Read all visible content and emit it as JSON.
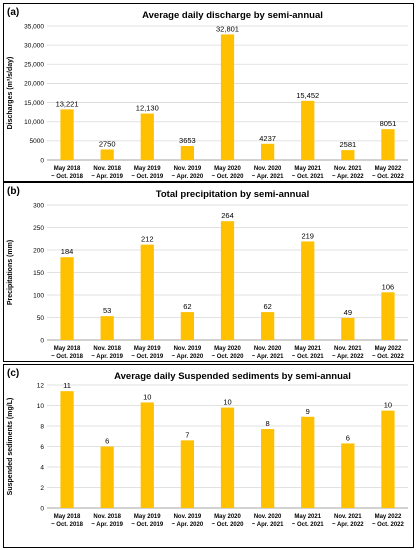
{
  "chart_data": [
    {
      "type": "bar",
      "panel": "(a)",
      "title": "Average daily discharge by semi-annual",
      "ylabel": "Discharges (m³/s/day)",
      "xlabel": "",
      "ylim": [
        0,
        35000
      ],
      "yticks": [
        0,
        5000,
        10000,
        15000,
        20000,
        25000,
        30000,
        35000
      ],
      "ytick_labels": [
        "0",
        "5000",
        "10,000",
        "15,000",
        "20,000",
        "25,000",
        "30,000",
        "35,000"
      ],
      "grid": true,
      "bar_color": "#FFC000",
      "categories": [
        [
          "May 2018",
          "~ Oct. 2018"
        ],
        [
          "Nov. 2018",
          "~ Apr. 2019"
        ],
        [
          "May 2019",
          "~ Oct. 2019"
        ],
        [
          "Nov. 2019",
          "~ Apr. 2020"
        ],
        [
          "May 2020",
          "~ Oct. 2020"
        ],
        [
          "Nov. 2020",
          "~ Apr. 2021"
        ],
        [
          "May 2021",
          "~ Oct. 2021"
        ],
        [
          "Nov. 2021",
          "~ Apr. 2022"
        ],
        [
          "May 2022",
          "~ Oct. 2022"
        ]
      ],
      "values": [
        13221,
        2750,
        12130,
        3653,
        32801,
        4237,
        15452,
        2581,
        8051
      ],
      "value_labels": [
        "13,221",
        "2750",
        "12,130",
        "3653",
        "32,801",
        "4237",
        "15,452",
        "2581",
        "8051"
      ]
    },
    {
      "type": "bar",
      "panel": "(b)",
      "title": "Total precipitation by semi-annual",
      "ylabel": "Precipitations (mm)",
      "xlabel": "",
      "ylim": [
        0,
        300
      ],
      "yticks": [
        0,
        50,
        100,
        150,
        200,
        250,
        300
      ],
      "ytick_labels": [
        "0",
        "50",
        "100",
        "150",
        "200",
        "250",
        "300"
      ],
      "grid": true,
      "bar_color": "#FFC000",
      "categories": [
        [
          "May 2018",
          "~ Oct. 2018"
        ],
        [
          "Nov. 2018",
          "~ Apr. 2019"
        ],
        [
          "May 2019",
          "~ Oct. 2019"
        ],
        [
          "Nov. 2019",
          "~ Apr. 2020"
        ],
        [
          "May 2020",
          "~ Oct. 2020"
        ],
        [
          "Nov. 2020",
          "~ Apr. 2021"
        ],
        [
          "May 2021",
          "~ Oct. 2021"
        ],
        [
          "Nov. 2021",
          "~ Apr. 2022"
        ],
        [
          "May 2022",
          "~ Oct. 2022"
        ]
      ],
      "values": [
        184,
        53,
        212,
        62,
        264,
        62,
        219,
        49,
        106
      ],
      "value_labels": [
        "184",
        "53",
        "212",
        "62",
        "264",
        "62",
        "219",
        "49",
        "106"
      ]
    },
    {
      "type": "bar",
      "panel": "(c)",
      "title": "Average daily Suspended sediments by semi-annual",
      "ylabel": "Suspended sediments (mg/L)",
      "xlabel": "",
      "ylim": [
        0,
        12
      ],
      "yticks": [
        0,
        2,
        4,
        6,
        8,
        10,
        12
      ],
      "ytick_labels": [
        "0",
        "2",
        "4",
        "6",
        "8",
        "10",
        "12"
      ],
      "grid": true,
      "bar_color": "#FFC000",
      "categories": [
        [
          "May 2018",
          "~ Oct. 2018"
        ],
        [
          "Nov. 2018",
          "~ Apr. 2019"
        ],
        [
          "May 2019",
          "~ Oct. 2019"
        ],
        [
          "Nov. 2019",
          "~ Apr. 2020"
        ],
        [
          "May 2020",
          "~ Oct. 2020"
        ],
        [
          "Nov. 2020",
          "~ Apr. 2021"
        ],
        [
          "May 2021",
          "~ Oct. 2021"
        ],
        [
          "Nov. 2021",
          "~ Apr. 2022"
        ],
        [
          "May 2022",
          "~ Oct. 2022"
        ]
      ],
      "values": [
        11.4,
        6.0,
        10.3,
        6.6,
        9.8,
        7.7,
        8.9,
        6.3,
        9.5
      ],
      "value_labels": [
        "11",
        "6",
        "10",
        "7",
        "10",
        "8",
        "9",
        "6",
        "10"
      ]
    }
  ]
}
